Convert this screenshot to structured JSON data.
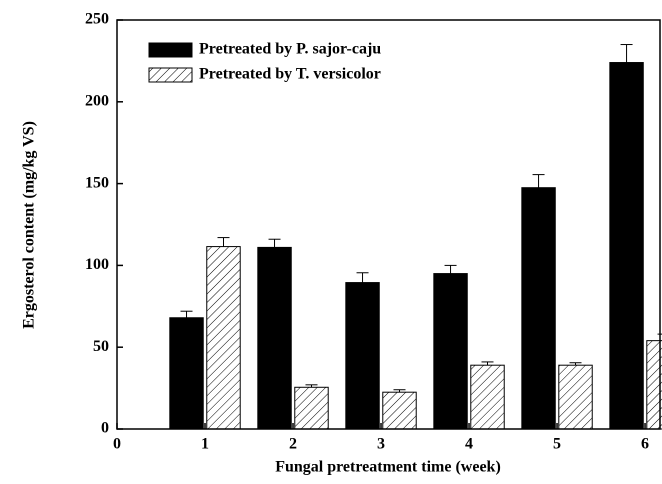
{
  "chart_data": {
    "type": "bar",
    "xlabel": "Fungal pretreatment time (week)",
    "ylabel": "Ergosterol content (mg/kg VS)",
    "x": [
      1,
      2,
      3,
      4,
      5,
      6
    ],
    "series": [
      {
        "name": "Pretreated by P. sajor-caju",
        "color": "#000000",
        "values": [
          68,
          111,
          89.5,
          95,
          147.5,
          224
        ],
        "errors": [
          4,
          5,
          6,
          5,
          8,
          11
        ]
      },
      {
        "name": "Pretreated by T. versicolor",
        "color": "#ffffff",
        "pattern": "hatch",
        "values": [
          111.5,
          25.5,
          22.5,
          39,
          39,
          54
        ],
        "errors": [
          5.5,
          1.5,
          1.5,
          2,
          1.5,
          4
        ]
      }
    ],
    "xlim": [
      0,
      6.17
    ],
    "xticks": [
      0,
      1,
      2,
      3,
      4,
      5,
      6
    ],
    "ylim": [
      0,
      250
    ],
    "yticks": [
      0,
      50,
      100,
      150,
      200,
      250
    ],
    "legend": "upper left"
  }
}
